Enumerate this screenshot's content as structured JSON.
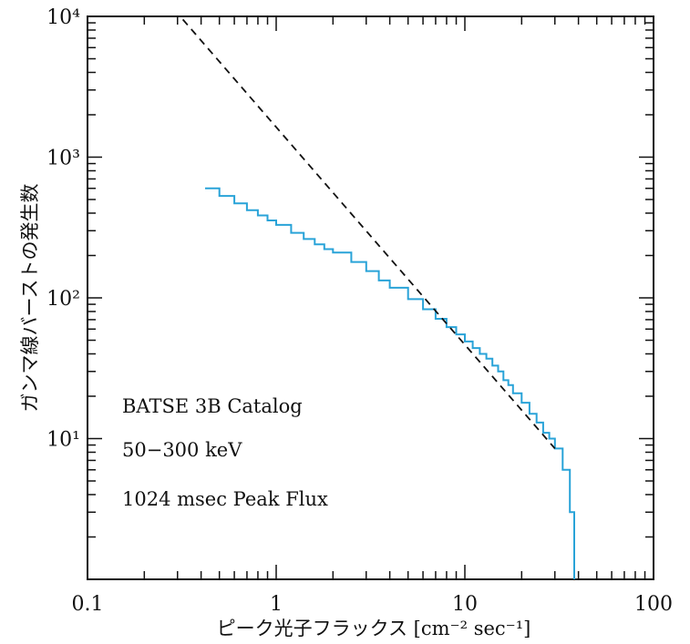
{
  "chart_data": {
    "type": "line",
    "x_scale": "log",
    "y_scale": "log",
    "xlim": [
      0.1,
      100
    ],
    "ylim": [
      1,
      10000
    ],
    "grid": false,
    "xlabel": "ピーク光子フラックス [cm⁻² sec⁻¹]",
    "ylabel": "ガンマ線バーストの発生数",
    "x_tick_labels": [
      {
        "value": 0.1,
        "label": "0.1"
      },
      {
        "value": 1,
        "label": "1"
      },
      {
        "value": 10,
        "label": "10"
      },
      {
        "value": 100,
        "label": "100"
      }
    ],
    "y_tick_labels": [
      {
        "value": 10,
        "label": "10¹"
      },
      {
        "value": 100,
        "label": "10²"
      },
      {
        "value": 1000,
        "label": "10³"
      },
      {
        "value": 10000,
        "label": "10⁴"
      }
    ],
    "annotations": [
      "BATSE 3B Catalog",
      "50−300 keV",
      "1024 msec Peak Flux"
    ],
    "series": [
      {
        "style": "solid",
        "color": "#29a3d8",
        "points": [
          [
            0.42,
            600
          ],
          [
            0.5,
            530
          ],
          [
            0.6,
            470
          ],
          [
            0.7,
            420
          ],
          [
            0.8,
            385
          ],
          [
            0.9,
            355
          ],
          [
            1.0,
            330
          ],
          [
            1.2,
            290
          ],
          [
            1.4,
            262
          ],
          [
            1.6,
            240
          ],
          [
            1.8,
            222
          ],
          [
            2.0,
            210
          ],
          [
            2.5,
            180
          ],
          [
            3.0,
            155
          ],
          [
            3.5,
            133
          ],
          [
            4.0,
            118
          ],
          [
            5.0,
            98
          ],
          [
            6.0,
            83
          ],
          [
            7.0,
            71
          ],
          [
            8.0,
            62
          ],
          [
            9.0,
            55
          ],
          [
            10.0,
            49
          ],
          [
            11.0,
            44
          ],
          [
            12.0,
            40
          ],
          [
            13.0,
            37
          ],
          [
            14.0,
            33
          ],
          [
            15.0,
            30
          ],
          [
            16.0,
            26
          ],
          [
            17.0,
            24
          ],
          [
            18.0,
            21
          ],
          [
            20.0,
            18
          ],
          [
            22.0,
            15
          ],
          [
            24.0,
            13
          ],
          [
            26.0,
            11
          ],
          [
            28.0,
            10
          ],
          [
            30.0,
            8.5
          ],
          [
            33.0,
            6.0
          ],
          [
            36.0,
            3.0
          ],
          [
            38.0,
            1.0
          ]
        ]
      },
      {
        "style": "dashed",
        "color": "#111111",
        "points": [
          [
            0.32,
            9500
          ],
          [
            30.0,
            8.5
          ]
        ]
      }
    ]
  }
}
